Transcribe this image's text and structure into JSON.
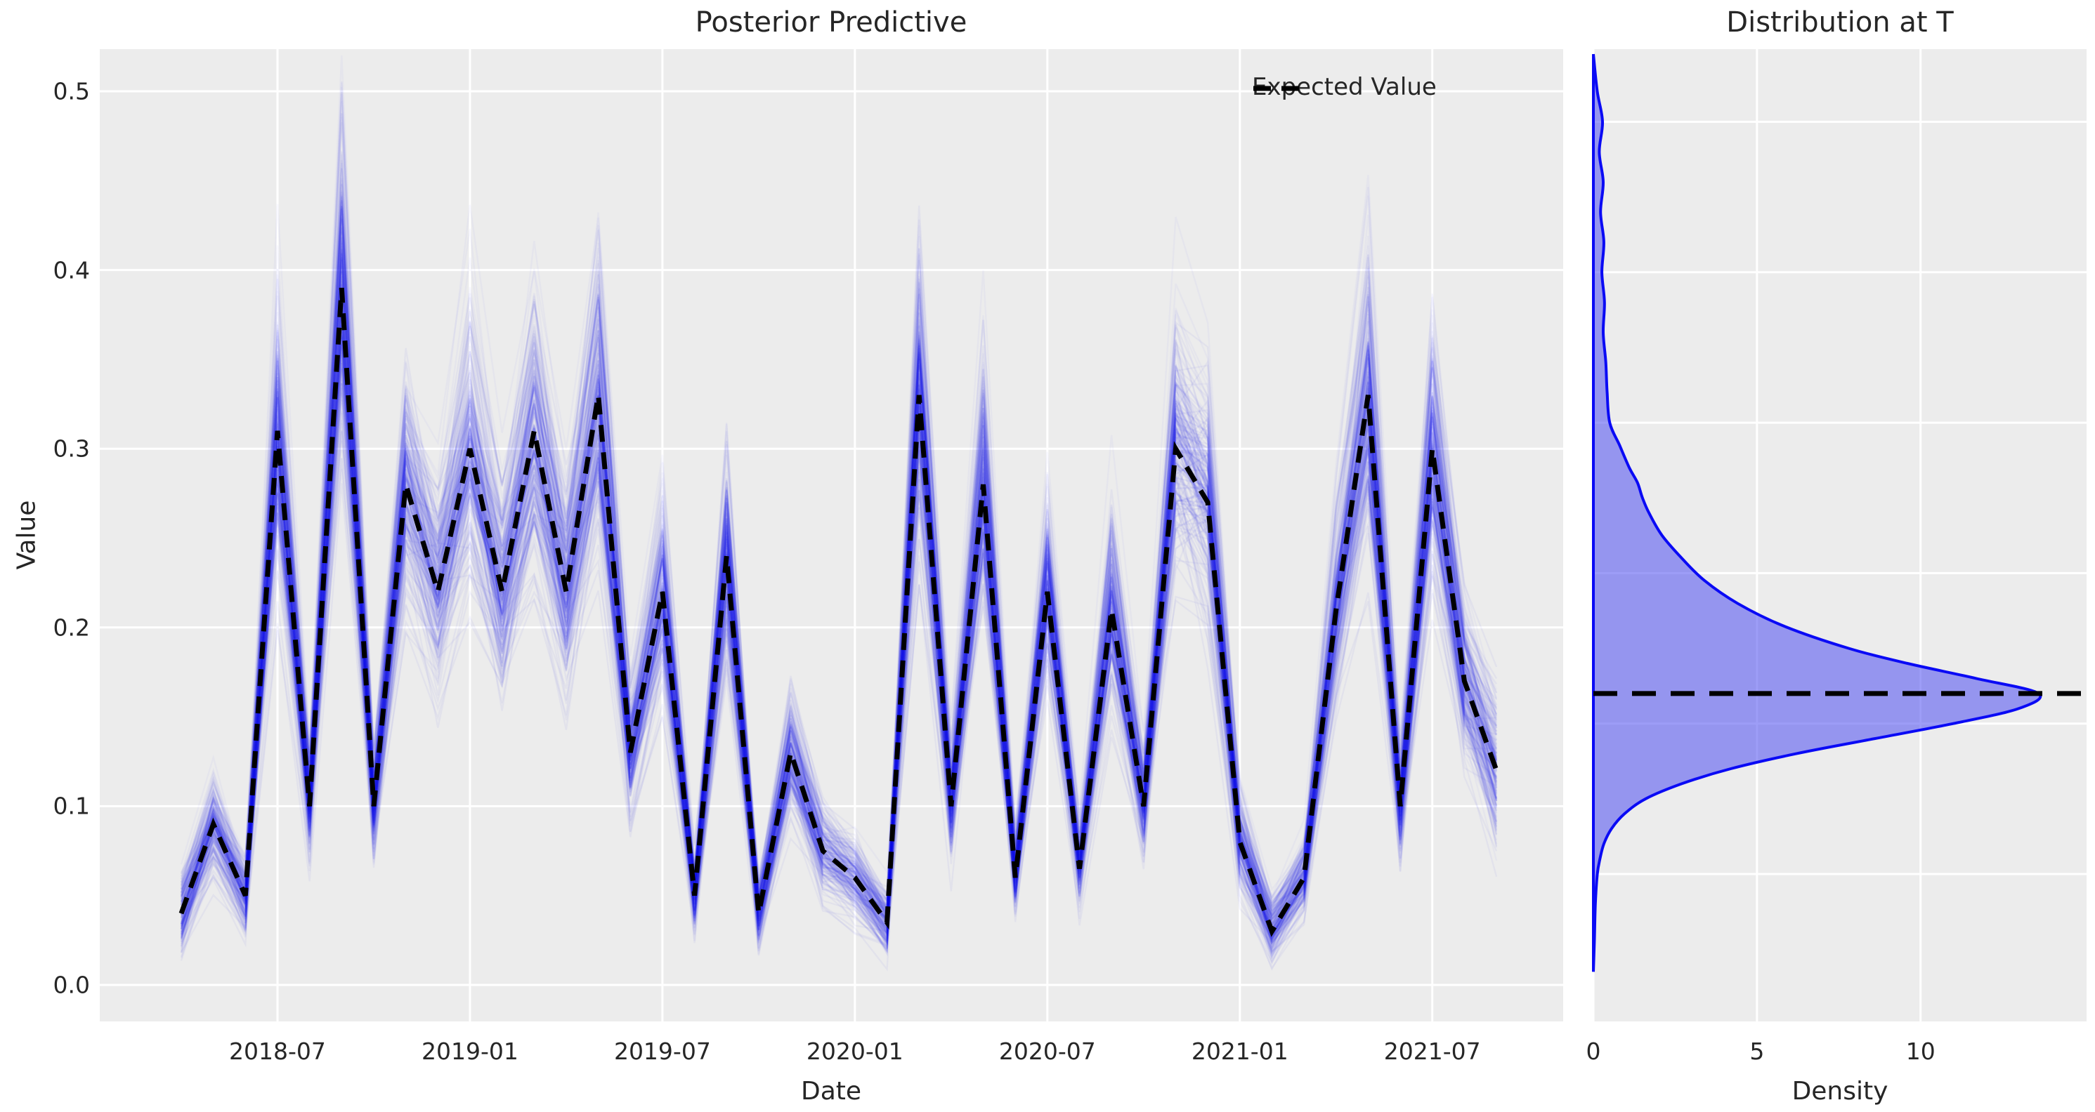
{
  "figure": {
    "background": "#ffffff",
    "panel_background": "#ececec",
    "grid_color": "#ffffff",
    "text_color": "#262626",
    "mean_line_color": "#000000",
    "sample_line_color": "#1a1af0",
    "kde_stroke_color": "#0a0af5",
    "kde_fill_color": "#5050f0",
    "kde_fill_opacity": 0.56
  },
  "chart_data": [
    {
      "type": "line",
      "title": "Posterior Predictive",
      "xlabel": "Date",
      "ylabel": "Value",
      "ylim": [
        -0.02,
        0.524
      ],
      "grid": true,
      "yticks": [
        {
          "label": "0.0",
          "v": 0.0
        },
        {
          "label": "0.1",
          "v": 0.1
        },
        {
          "label": "0.2",
          "v": 0.2
        },
        {
          "label": "0.3",
          "v": 0.3
        },
        {
          "label": "0.4",
          "v": 0.4
        },
        {
          "label": "0.5",
          "v": 0.5
        }
      ],
      "xticks": [
        {
          "label": "2018-07",
          "i": 3
        },
        {
          "label": "2019-01",
          "i": 9
        },
        {
          "label": "2019-07",
          "i": 15
        },
        {
          "label": "2020-01",
          "i": 21
        },
        {
          "label": "2020-07",
          "i": 27
        },
        {
          "label": "2021-01",
          "i": 33
        },
        {
          "label": "2021-07",
          "i": 39
        }
      ],
      "legend": [
        {
          "label": "Expected Value",
          "style": "dashed",
          "color": "#000000",
          "position": "upper right"
        }
      ],
      "x": [
        "2018-04",
        "2018-05",
        "2018-06",
        "2018-07",
        "2018-08",
        "2018-09",
        "2018-10",
        "2018-11",
        "2018-12",
        "2019-01",
        "2019-02",
        "2019-03",
        "2019-04",
        "2019-05",
        "2019-06",
        "2019-07",
        "2019-08",
        "2019-09",
        "2019-10",
        "2019-11",
        "2019-12",
        "2020-01",
        "2020-02",
        "2020-03",
        "2020-04",
        "2020-05",
        "2020-06",
        "2020-07",
        "2020-08",
        "2020-09",
        "2020-10",
        "2020-11",
        "2020-12",
        "2021-01",
        "2021-02",
        "2021-03",
        "2021-04",
        "2021-05",
        "2021-06",
        "2021-07",
        "2021-08",
        "2021-09"
      ],
      "series": [
        {
          "name": "Expected Value",
          "values": [
            0.04,
            0.09,
            0.05,
            0.31,
            0.1,
            0.39,
            0.1,
            0.28,
            0.22,
            0.3,
            0.22,
            0.31,
            0.22,
            0.33,
            0.13,
            0.22,
            0.05,
            0.24,
            0.04,
            0.13,
            0.075,
            0.06,
            0.035,
            0.33,
            0.1,
            0.28,
            0.06,
            0.22,
            0.065,
            0.21,
            0.1,
            0.3,
            0.27,
            0.08,
            0.03,
            0.06,
            0.21,
            0.33,
            0.1,
            0.3,
            0.17,
            0.12
          ]
        }
      ],
      "posterior_samples": {
        "description": "translucent blue posterior draws around expected value",
        "approx_count": 190,
        "max_observed": 0.5,
        "min_observed": 0.005,
        "tiers": [
          {
            "count": 70,
            "spread": 0.1,
            "jitter": 0.01,
            "opacity": 0.07,
            "bias": 0.0
          },
          {
            "count": 95,
            "spread": 0.19,
            "jitter": 0.013,
            "opacity": 0.045,
            "bias": 0.0
          },
          {
            "count": 24,
            "spread": 0.14,
            "jitter": 0.015,
            "opacity": 0.03,
            "bias": 0.24
          }
        ]
      }
    },
    {
      "type": "area",
      "title": "Distribution at T",
      "xlabel": "Density",
      "ylim": [
        -0.098,
        0.548
      ],
      "xlim": [
        0,
        15.06
      ],
      "grid": true,
      "xticks": [
        {
          "label": "0",
          "d": 0
        },
        {
          "label": "5",
          "d": 5
        },
        {
          "label": "10",
          "d": 10
        }
      ],
      "gridline_values": [
        0.0,
        0.1,
        0.2,
        0.3,
        0.4,
        0.5
      ],
      "expected_value": 0.12,
      "peak_density": 13.6,
      "density_points": [
        [
          0.545,
          0.0
        ],
        [
          0.52,
          0.12
        ],
        [
          0.5,
          0.28
        ],
        [
          0.48,
          0.18
        ],
        [
          0.46,
          0.3
        ],
        [
          0.44,
          0.22
        ],
        [
          0.42,
          0.32
        ],
        [
          0.4,
          0.26
        ],
        [
          0.38,
          0.34
        ],
        [
          0.36,
          0.3
        ],
        [
          0.34,
          0.38
        ],
        [
          0.32,
          0.42
        ],
        [
          0.3,
          0.5
        ],
        [
          0.285,
          0.8
        ],
        [
          0.27,
          1.1
        ],
        [
          0.26,
          1.35
        ],
        [
          0.25,
          1.5
        ],
        [
          0.24,
          1.7
        ],
        [
          0.225,
          2.1
        ],
        [
          0.21,
          2.7
        ],
        [
          0.195,
          3.4
        ],
        [
          0.18,
          4.4
        ],
        [
          0.165,
          5.8
        ],
        [
          0.15,
          7.8
        ],
        [
          0.14,
          9.6
        ],
        [
          0.13,
          11.7
        ],
        [
          0.12,
          13.6
        ],
        [
          0.11,
          13.0
        ],
        [
          0.1,
          11.0
        ],
        [
          0.09,
          8.6
        ],
        [
          0.08,
          6.2
        ],
        [
          0.07,
          4.2
        ],
        [
          0.06,
          2.7
        ],
        [
          0.05,
          1.6
        ],
        [
          0.04,
          0.95
        ],
        [
          0.03,
          0.55
        ],
        [
          0.02,
          0.32
        ],
        [
          0.01,
          0.2
        ],
        [
          0.0,
          0.12
        ],
        [
          -0.02,
          0.06
        ],
        [
          -0.045,
          0.03
        ],
        [
          -0.065,
          0.0
        ]
      ]
    }
  ]
}
